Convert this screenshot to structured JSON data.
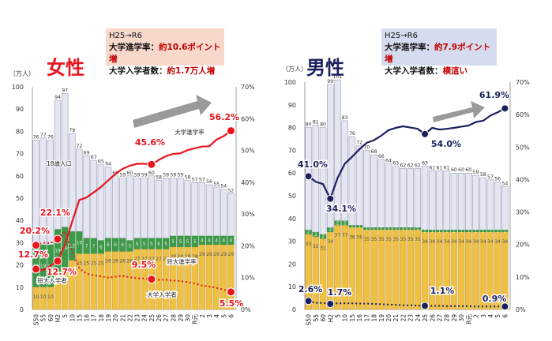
{
  "panels": [
    {
      "id": "female",
      "gender_title": "女性",
      "info": {
        "period": "H25→R6",
        "rate_label": "大学進学率：",
        "rate_value": "約10.6ポイント増",
        "count_label": "大学入学者数：",
        "count_value": "約1.7万人増",
        "bg": "#f9d8cc"
      }
    },
    {
      "id": "male",
      "gender_title": "男性",
      "info": {
        "period": "H25→R6",
        "rate_label": "大学進学率：",
        "rate_value": "約7.9ポイント増",
        "count_label": "大学入学者数：",
        "count_value": "横這い",
        "bg": "#d6dcef"
      }
    }
  ],
  "chart_data": [
    {
      "type": "bar",
      "title": "女性",
      "categories": [
        "S50",
        "55",
        "60",
        "H2",
        "5",
        "10",
        "15",
        "16",
        "17",
        "18",
        "19",
        "20",
        "21",
        "22",
        "23",
        "24",
        "25",
        "26",
        "27",
        "28",
        "29",
        "30",
        "R元",
        "2",
        "3",
        "4",
        "5",
        "6"
      ],
      "y_left": {
        "label": "（万人）",
        "ylim": [
          0,
          100
        ],
        "ticks": [
          0,
          10,
          20,
          30,
          40,
          50,
          60,
          70,
          80,
          90,
          100
        ]
      },
      "y_right": {
        "ylim": [
          0,
          70
        ],
        "ticks": [
          "0%",
          "10%",
          "20%",
          "30%",
          "40%",
          "50%",
          "60%",
          "70%"
        ]
      },
      "series": [
        {
          "name": "18歳人口",
          "kind": "bar",
          "values": [
            76,
            77,
            76,
            94,
            97,
            79,
            72,
            69,
            67,
            65,
            64,
            60,
            59,
            60,
            59,
            59,
            60,
            58,
            59,
            59,
            59,
            58,
            57,
            57,
            56,
            55,
            54,
            52
          ]
        },
        {
          "name": "短大入学者",
          "kind": "bar_segment",
          "values": [
            19,
            19,
            19,
            19,
            19,
            13,
            10,
            7,
            7,
            6,
            6,
            6,
            6,
            5,
            5,
            5,
            5,
            5,
            5,
            5,
            5,
            5,
            5,
            4,
            4,
            4,
            4,
            4
          ]
        },
        {
          "name": "大学入学者",
          "kind": "bar_segment",
          "values": [
            10,
            10,
            10,
            17,
            18,
            22,
            25,
            25,
            25,
            25,
            26,
            26,
            26,
            26,
            27,
            27,
            27,
            27,
            27,
            28,
            28,
            28,
            28,
            29,
            29,
            29,
            29,
            29
          ]
        },
        {
          "name": "大学進学率",
          "kind": "line",
          "axis": "right",
          "values": [
            12.7,
            12.3,
            13.7,
            15.2,
            20.2,
            27.5,
            34.4,
            35.2,
            36.8,
            38.5,
            40.6,
            42.6,
            44.2,
            45.2,
            45.8,
            45.8,
            45.6,
            47.0,
            48.2,
            48.9,
            49.1,
            50.1,
            50.7,
            51.2,
            51.3,
            53.4,
            54.5,
            56.2
          ]
        },
        {
          "name": "短大進学率",
          "kind": "line",
          "axis": "right",
          "values": [
            20.2,
            21.0,
            20.8,
            22.1,
            24.4,
            18.5,
            13.0,
            11.2,
            10.8,
            10.4,
            10.0,
            10.3,
            10.6,
            10.1,
            9.8,
            9.7,
            9.5,
            9.3,
            9.3,
            9.1,
            8.9,
            8.6,
            8.2,
            7.5,
            7.2,
            6.8,
            6.2,
            5.5
          ]
        }
      ],
      "annotations": [
        "56.2%",
        "45.6%",
        "22.1%",
        "20.2%",
        "12.7%",
        "9.5%",
        "5.5%",
        "18歳人口",
        "大学進学率",
        "短大進学率",
        "短大入学者",
        "大学入学者"
      ],
      "ann_values": {
        "rate_now": "56.2%",
        "rate_h25": "45.6%",
        "junior_peak": "22.1%",
        "junior_s50": "20.2%",
        "univ_s50": "12.7%",
        "univ_peak_low": "12.7%",
        "junior_h25": "9.5%",
        "junior_now": "5.5%"
      },
      "colors": {
        "pop": "#e4e6f2",
        "junior": "#3d9a47",
        "univ": "#f0c043",
        "rate": "#e8141e",
        "junior_rate": "#e8141e"
      }
    },
    {
      "type": "bar",
      "title": "男性",
      "categories": [
        "S50",
        "55",
        "60",
        "H2",
        "5",
        "10",
        "15",
        "16",
        "17",
        "18",
        "19",
        "20",
        "21",
        "22",
        "23",
        "24",
        "25",
        "26",
        "27",
        "28",
        "29",
        "30",
        "R元",
        "2",
        "3",
        "4",
        "5",
        "6"
      ],
      "y_left": {
        "label": "（万人）",
        "ylim": [
          0,
          100
        ],
        "ticks": [
          0,
          10,
          20,
          30,
          40,
          50,
          60,
          70,
          80,
          90,
          100
        ]
      },
      "y_right": {
        "ylim": [
          0,
          70
        ],
        "ticks": [
          "0%",
          "10%",
          "20%",
          "30%",
          "40%",
          "50%",
          "60%",
          "70%"
        ]
      },
      "series": [
        {
          "name": "18歳人口",
          "kind": "bar",
          "values": [
            80,
            81,
            80,
            99,
            101,
            83,
            76,
            72,
            70,
            68,
            66,
            64,
            63,
            62,
            62,
            62,
            63,
            61,
            61,
            61,
            60,
            60,
            60,
            59,
            58,
            57,
            56,
            54
          ]
        },
        {
          "name": "短大入学者",
          "kind": "bar_segment",
          "values": [
            2,
            2,
            2,
            2,
            2,
            2,
            1,
            1,
            1,
            1,
            1,
            1,
            1,
            1,
            1,
            1,
            1,
            1,
            1,
            1,
            1,
            1,
            1,
            1,
            1,
            1,
            1,
            1
          ]
        },
        {
          "name": "大学入学者",
          "kind": "bar_segment",
          "values": [
            33,
            32,
            31,
            34,
            37,
            37,
            36,
            36,
            35,
            35,
            35,
            35,
            35,
            35,
            35,
            35,
            34,
            34,
            34,
            34,
            34,
            34,
            34,
            34,
            34,
            34,
            34,
            34
          ]
        },
        {
          "name": "大学進学率",
          "kind": "line",
          "axis": "right",
          "values": [
            41.0,
            39.3,
            38.6,
            34.1,
            40.5,
            44.9,
            47.0,
            49.3,
            51.3,
            52.1,
            53.5,
            55.2,
            55.9,
            56.4,
            56.0,
            55.6,
            54.0,
            55.9,
            55.4,
            55.6,
            55.9,
            56.3,
            56.6,
            57.7,
            58.1,
            59.7,
            60.7,
            61.9
          ]
        },
        {
          "name": "短大進学率",
          "kind": "line",
          "axis": "right",
          "values": [
            2.6,
            2.0,
            2.0,
            1.7,
            1.9,
            1.9,
            1.9,
            1.8,
            1.8,
            1.7,
            1.6,
            1.5,
            1.4,
            1.3,
            1.3,
            1.2,
            1.1,
            1.1,
            1.1,
            1.0,
            1.0,
            1.0,
            1.0,
            0.9,
            0.9,
            0.9,
            0.9,
            0.9
          ]
        }
      ],
      "annotations": [
        "61.9%",
        "54.0%",
        "41.0%",
        "34.1%",
        "2.6%",
        "1.7%",
        "1.1%",
        "0.9%"
      ],
      "ann_values": {
        "rate_now": "61.9%",
        "rate_h25": "54.0%",
        "rate_s50": "41.0%",
        "rate_h2": "34.1%",
        "junior_s50": "2.6%",
        "junior_h2": "1.7%",
        "junior_h25": "1.1%",
        "junior_now": "0.9%"
      },
      "colors": {
        "pop": "#e4e6f2",
        "junior": "#3d9a47",
        "univ": "#f0c043",
        "rate": "#1b1f5e",
        "junior_rate": "#1b1f5e"
      }
    }
  ]
}
